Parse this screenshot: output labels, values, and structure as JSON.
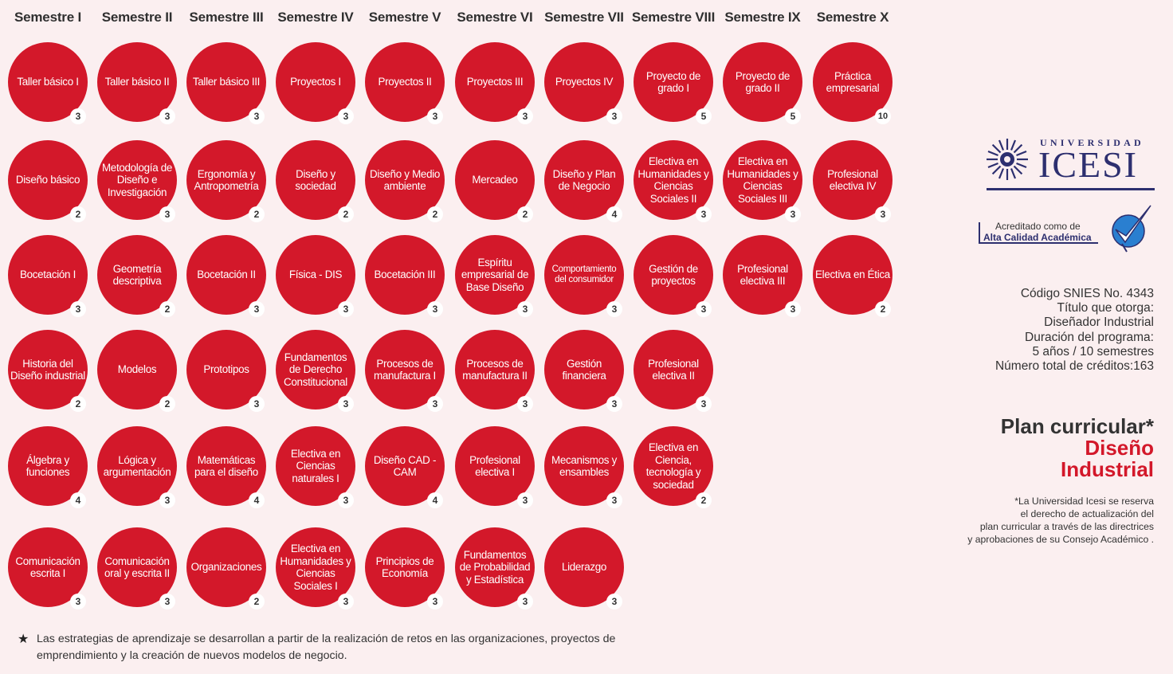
{
  "semesters": [
    "Semestre I",
    "Semestre II",
    "Semestre III",
    "Semestre IV",
    "Semestre V",
    "Semestre VI",
    "Semestre VII",
    "Semestre VIII",
    "Semestre IX",
    "Semestre X"
  ],
  "columns": [
    [
      {
        "name": "Taller básico I",
        "credits": "3"
      },
      {
        "name": "Diseño básico",
        "credits": "2"
      },
      {
        "name": "Bocetación I",
        "credits": "3"
      },
      {
        "name": "Historia del Diseño industrial",
        "credits": "2"
      },
      {
        "name": "Álgebra y funciones",
        "credits": "4"
      },
      {
        "name": "Comunicación escrita I",
        "credits": "3"
      }
    ],
    [
      {
        "name": "Taller básico II",
        "credits": "3"
      },
      {
        "name": "Metodología de Diseño e Investigación",
        "credits": "3"
      },
      {
        "name": "Geometría descriptiva",
        "credits": "2"
      },
      {
        "name": "Modelos",
        "credits": "2"
      },
      {
        "name": "Lógica y argumentación",
        "credits": "3"
      },
      {
        "name": "Comunicación oral y escrita II",
        "credits": "3"
      }
    ],
    [
      {
        "name": "Taller básico III",
        "credits": "3"
      },
      {
        "name": "Ergonomía y Antropometría",
        "credits": "2"
      },
      {
        "name": "Bocetación II",
        "credits": "3"
      },
      {
        "name": "Prototipos",
        "credits": "3"
      },
      {
        "name": "Matemáticas para el diseño",
        "credits": "4"
      },
      {
        "name": "Organizaciones",
        "credits": "2"
      }
    ],
    [
      {
        "name": "Proyectos I",
        "credits": "3"
      },
      {
        "name": "Diseño y sociedad",
        "credits": "2"
      },
      {
        "name": "Física - DIS",
        "credits": "3"
      },
      {
        "name": "Fundamentos de Derecho Constitucional",
        "credits": "3"
      },
      {
        "name": "Electiva en Ciencias naturales I",
        "credits": "3"
      },
      {
        "name": "Electiva en Humanidades y Ciencias Sociales I",
        "credits": "3"
      }
    ],
    [
      {
        "name": "Proyectos II",
        "credits": "3"
      },
      {
        "name": "Diseño y Medio ambiente",
        "credits": "2"
      },
      {
        "name": "Bocetación III",
        "credits": "3"
      },
      {
        "name": "Procesos de manufactura I",
        "credits": "3"
      },
      {
        "name": "Diseño CAD - CAM",
        "credits": "4"
      },
      {
        "name": "Principios de Economía",
        "credits": "3"
      }
    ],
    [
      {
        "name": "Proyectos III",
        "credits": "3"
      },
      {
        "name": "Mercadeo",
        "credits": "2"
      },
      {
        "name": "Espíritu empresarial de Base Diseño",
        "credits": "3"
      },
      {
        "name": "Procesos de manufactura II",
        "credits": "3"
      },
      {
        "name": "Profesional electiva I",
        "credits": "3"
      },
      {
        "name": "Fundamentos de Probabilidad y Estadística",
        "credits": "3"
      }
    ],
    [
      {
        "name": "Proyectos IV",
        "credits": "3"
      },
      {
        "name": "Diseño y Plan de Negocio",
        "credits": "4"
      },
      {
        "name": "Comportamiento del consumidor",
        "credits": "3",
        "small": true
      },
      {
        "name": "Gestión financiera",
        "credits": "3"
      },
      {
        "name": "Mecanismos y ensambles",
        "credits": "3"
      },
      {
        "name": "Liderazgo",
        "credits": "3"
      }
    ],
    [
      {
        "name": "Proyecto de grado I",
        "credits": "5"
      },
      {
        "name": "Electiva en Humanidades y Ciencias Sociales II",
        "credits": "3"
      },
      {
        "name": "Gestión de proyectos",
        "credits": "3"
      },
      {
        "name": "Profesional electiva II",
        "credits": "3"
      },
      {
        "name": "Electiva en Ciencia, tecnología y sociedad",
        "credits": "2"
      }
    ],
    [
      {
        "name": "Proyecto de grado II",
        "credits": "5"
      },
      {
        "name": "Electiva en Humanidades y Ciencias Sociales III",
        "credits": "3"
      },
      {
        "name": "Profesional electiva III",
        "credits": "3"
      }
    ],
    [
      {
        "name": "Práctica empresarial",
        "credits": "10"
      },
      {
        "name": "Profesional electiva IV",
        "credits": "3"
      },
      {
        "name": "Electiva en Ética",
        "credits": "2"
      }
    ]
  ],
  "logo": {
    "top": "UNIVERSIDAD",
    "main": "ICESI",
    "brand_color": "#2d2f6f"
  },
  "accreditation": {
    "line1": "Acreditado como de",
    "line2": "Alta Calidad Académica"
  },
  "info": [
    "Código SNIES No. 4343",
    "Título que otorga:",
    "Diseñador Industrial",
    "Duración del programa:",
    "5 años / 10 semestres",
    "Número total de créditos:163"
  ],
  "plan": {
    "line1": "Plan curricular*",
    "line2": "Diseño",
    "line3": "Industrial",
    "accent": "#d3182a"
  },
  "note": [
    "*La Universidad Icesi se reserva",
    "el derecho de actualización del",
    "plan curricular a través de las directrices",
    "y aprobaciones de su Consejo Académico ."
  ],
  "footer": {
    "icon": "star-icon",
    "text": "Las estrategias de aprendizaje se desarrollan a partir de la realización de retos en las organizaciones, proyectos de emprendimiento y la creación de nuevos modelos de negocio."
  }
}
